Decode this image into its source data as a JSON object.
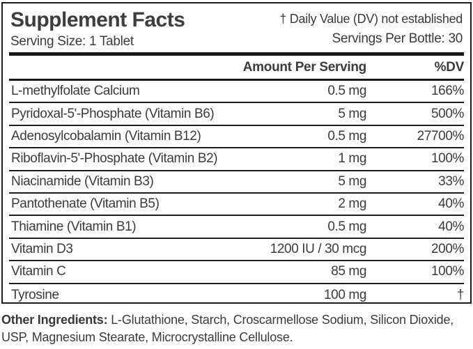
{
  "label": {
    "title": "Supplement Facts",
    "dv_note": "† Daily Value (DV) not established",
    "serving_size": "Serving Size: 1 Tablet",
    "servings_per_bottle": "Servings Per Bottle: 30",
    "columns": {
      "amount": "Amount Per Serving",
      "dv": "%DV"
    },
    "rows": [
      {
        "name": "L-methylfolate Calcium",
        "amount": "0.5 mg",
        "dv": "166%"
      },
      {
        "name": "Pyridoxal-5'-Phosphate (Vitamin B6)",
        "amount": "5 mg",
        "dv": "500%"
      },
      {
        "name": "Adenosylcobalamin (Vitamin B12)",
        "amount": "0.5 mg",
        "dv": "27700%"
      },
      {
        "name": "Riboflavin-5'-Phosphate (Vitamin B2)",
        "amount": "1 mg",
        "dv": "100%"
      },
      {
        "name": "Niacinamide (Vitamin B3)",
        "amount": "5 mg",
        "dv": "33%"
      },
      {
        "name": "Pantothenate (Vitamin B5)",
        "amount": "2 mg",
        "dv": "40%"
      },
      {
        "name": "Thiamine (Vitamin B1)",
        "amount": "0.5 mg",
        "dv": "40%"
      },
      {
        "name": "Vitamin D3",
        "amount": "1200 IU / 30 mcg",
        "dv": "200%"
      },
      {
        "name": "Vitamin C",
        "amount": "85 mg",
        "dv": "100%"
      },
      {
        "name": "Tyrosine",
        "amount": "100 mg",
        "dv": "†"
      }
    ]
  },
  "other_ingredients": {
    "label": "Other Ingredients:",
    "text": "L-Glutathione, Starch, Croscarmellose Sodium, Silicon Dioxide, USP, Magnesium Stearate, Microcrystalline Cellulose."
  },
  "colors": {
    "text": "#3b3b3b",
    "line": "#1d1d1d",
    "background": "#ffffff"
  }
}
